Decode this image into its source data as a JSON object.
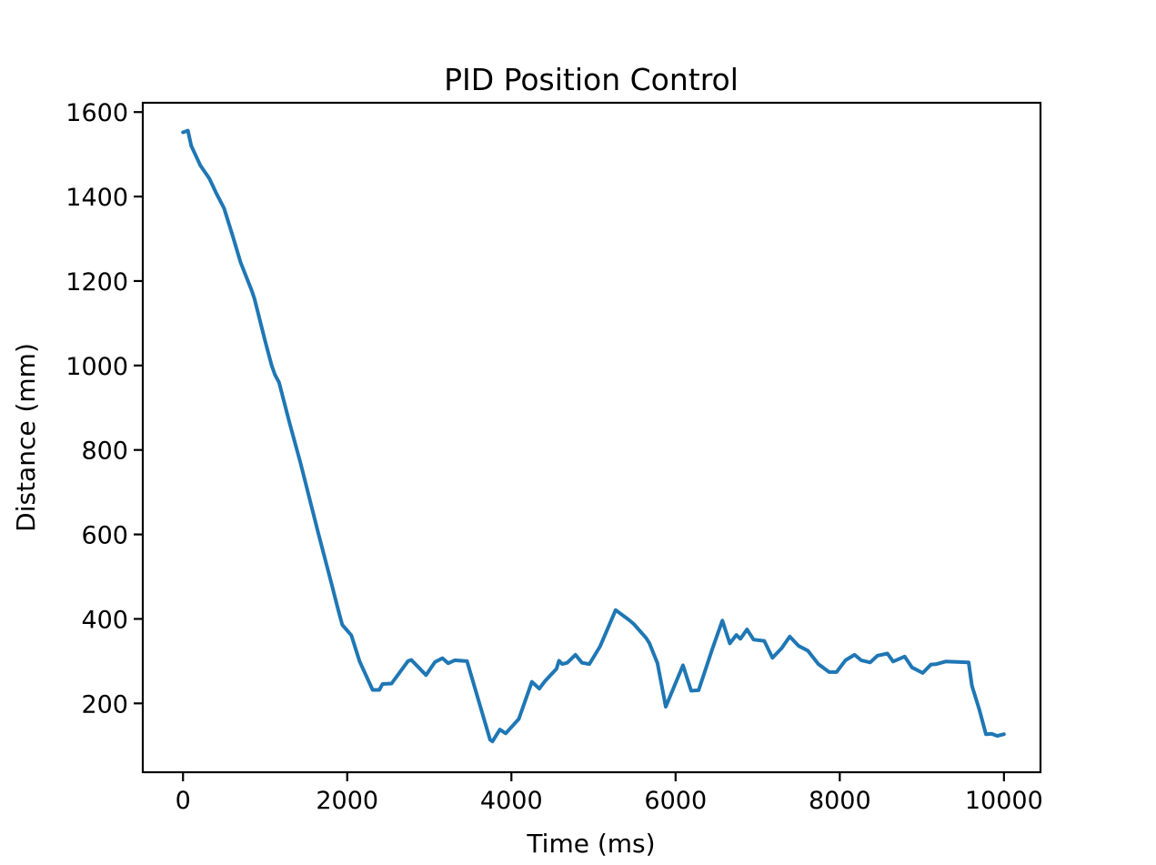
{
  "figure": {
    "background": "#ffffff",
    "text_color": "#000000"
  },
  "chart_data": {
    "type": "line",
    "title": "PID Position Control",
    "xlabel": "Time (ms)",
    "ylabel": "Distance (mm)",
    "grid": false,
    "legend": null,
    "line_color": "#1f77b4",
    "line_width": 4,
    "spine_color": "#000000",
    "spine_width": 2.2,
    "xlim": [
      -490,
      10445
    ],
    "ylim": [
      37,
      1622
    ],
    "xticks": [
      0,
      2000,
      4000,
      6000,
      8000,
      10000
    ],
    "yticks": [
      200,
      400,
      600,
      800,
      1000,
      1200,
      1400,
      1600
    ],
    "series": [
      {
        "name": "distance",
        "color": "#1f77b4",
        "points": [
          [
            0,
            1552
          ],
          [
            60,
            1556
          ],
          [
            100,
            1520
          ],
          [
            210,
            1474
          ],
          [
            320,
            1443
          ],
          [
            400,
            1410
          ],
          [
            500,
            1372
          ],
          [
            600,
            1310
          ],
          [
            700,
            1245
          ],
          [
            840,
            1176
          ],
          [
            870,
            1158
          ],
          [
            1000,
            1058
          ],
          [
            1080,
            1000
          ],
          [
            1120,
            978
          ],
          [
            1170,
            960
          ],
          [
            1300,
            862
          ],
          [
            1430,
            770
          ],
          [
            1650,
            601
          ],
          [
            1800,
            490
          ],
          [
            1890,
            422
          ],
          [
            1940,
            386
          ],
          [
            2050,
            361
          ],
          [
            2150,
            300
          ],
          [
            2310,
            232
          ],
          [
            2390,
            232
          ],
          [
            2430,
            246
          ],
          [
            2540,
            247
          ],
          [
            2740,
            300
          ],
          [
            2780,
            303
          ],
          [
            2960,
            267
          ],
          [
            3070,
            298
          ],
          [
            3160,
            307
          ],
          [
            3230,
            295
          ],
          [
            3310,
            302
          ],
          [
            3460,
            300
          ],
          [
            3740,
            114
          ],
          [
            3770,
            110
          ],
          [
            3860,
            138
          ],
          [
            3930,
            129
          ],
          [
            4090,
            163
          ],
          [
            4250,
            251
          ],
          [
            4340,
            235
          ],
          [
            4410,
            253
          ],
          [
            4550,
            282
          ],
          [
            4580,
            301
          ],
          [
            4620,
            293
          ],
          [
            4680,
            296
          ],
          [
            4780,
            315
          ],
          [
            4860,
            296
          ],
          [
            4950,
            293
          ],
          [
            5080,
            335
          ],
          [
            5270,
            421
          ],
          [
            5430,
            398
          ],
          [
            5490,
            388
          ],
          [
            5640,
            355
          ],
          [
            5680,
            343
          ],
          [
            5780,
            295
          ],
          [
            5880,
            192
          ],
          [
            6090,
            290
          ],
          [
            6190,
            230
          ],
          [
            6280,
            231
          ],
          [
            6450,
            330
          ],
          [
            6570,
            396
          ],
          [
            6660,
            342
          ],
          [
            6740,
            362
          ],
          [
            6790,
            353
          ],
          [
            6870,
            375
          ],
          [
            6950,
            351
          ],
          [
            7080,
            348
          ],
          [
            7180,
            308
          ],
          [
            7290,
            330
          ],
          [
            7390,
            358
          ],
          [
            7500,
            336
          ],
          [
            7610,
            325
          ],
          [
            7740,
            293
          ],
          [
            7870,
            274
          ],
          [
            7960,
            274
          ],
          [
            8070,
            302
          ],
          [
            8180,
            315
          ],
          [
            8260,
            302
          ],
          [
            8370,
            297
          ],
          [
            8460,
            313
          ],
          [
            8580,
            318
          ],
          [
            8650,
            299
          ],
          [
            8790,
            311
          ],
          [
            8880,
            285
          ],
          [
            9010,
            272
          ],
          [
            9110,
            292
          ],
          [
            9180,
            293
          ],
          [
            9290,
            299
          ],
          [
            9570,
            297
          ],
          [
            9610,
            242
          ],
          [
            9700,
            185
          ],
          [
            9780,
            127
          ],
          [
            9850,
            128
          ],
          [
            9920,
            123
          ],
          [
            10000,
            127
          ]
        ]
      }
    ]
  }
}
